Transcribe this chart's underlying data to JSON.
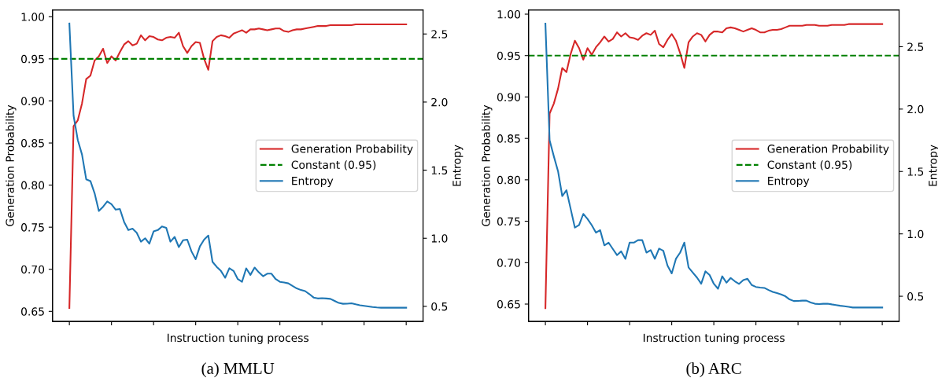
{
  "chart_data": [
    {
      "type": "line",
      "title": "(a) MMLU",
      "xlabel": "Instruction tuning process",
      "ylabel": "Generation Probability",
      "y2label": "Entropy",
      "categories": [
        null,
        null,
        null,
        null,
        null,
        null,
        null,
        null,
        null,
        null,
        null,
        null,
        null,
        null,
        null,
        null,
        null,
        null,
        null,
        null,
        null,
        null,
        null,
        null,
        null,
        null,
        null,
        null,
        null,
        null,
        null,
        null,
        null,
        null,
        null,
        null,
        null,
        null,
        null,
        null,
        null,
        null,
        null,
        null,
        null,
        null,
        null,
        null,
        null,
        null,
        null,
        null,
        null,
        null,
        null,
        null,
        null,
        null,
        null,
        null,
        null,
        null,
        null,
        null,
        null,
        null,
        null,
        null,
        null,
        null,
        null,
        null,
        null,
        null,
        null,
        null,
        null,
        null,
        null,
        null,
        null
      ],
      "ylim": [
        0.638,
        1.008
      ],
      "yticks": [
        {
          "value": 0.65,
          "label": "0.65"
        },
        {
          "value": 0.7,
          "label": "0.70"
        },
        {
          "value": 0.75,
          "label": "0.75"
        },
        {
          "value": 0.8,
          "label": "0.80"
        },
        {
          "value": 0.85,
          "label": "0.85"
        },
        {
          "value": 0.9,
          "label": "0.90"
        },
        {
          "value": 0.95,
          "label": "0.95"
        },
        {
          "value": 1.0,
          "label": "1.00"
        }
      ],
      "y2lim": [
        0.389,
        2.676
      ],
      "y2ticks": [
        {
          "value": 0.5,
          "label": "0.5"
        },
        {
          "value": 1.0,
          "label": "1.0"
        },
        {
          "value": 1.5,
          "label": "1.5"
        },
        {
          "value": 2.0,
          "label": "2.0"
        },
        {
          "value": 2.5,
          "label": "2.5"
        }
      ],
      "legend": "right",
      "grid": false,
      "ref_lines": [
        {
          "axis": "y",
          "value": 0.95,
          "label": "Constant (0.95)",
          "color": "#008000",
          "line_style": "dashed"
        }
      ],
      "series": [
        {
          "name": "Generation Probability",
          "color": "#d62728",
          "values": [
            0.654,
            0.87,
            0.877,
            0.897,
            0.926,
            0.93,
            0.948,
            0.953,
            0.962,
            0.945,
            0.953,
            0.948,
            0.958,
            0.967,
            0.971,
            0.966,
            0.968,
            0.978,
            0.972,
            0.977,
            0.976,
            0.973,
            0.972,
            0.975,
            0.976,
            0.975,
            0.981,
            0.965,
            0.957,
            0.965,
            0.97,
            0.969,
            0.95,
            0.937,
            0.971,
            0.976,
            0.978,
            0.977,
            0.975,
            0.98,
            0.982,
            0.984,
            0.981,
            0.985,
            0.985,
            0.986,
            0.985,
            0.984,
            0.985,
            0.986,
            0.986,
            0.983,
            0.982,
            0.984,
            0.985,
            0.985,
            0.986,
            0.987,
            0.988,
            0.989,
            0.989,
            0.989,
            0.99,
            0.99,
            0.99,
            0.99,
            0.99,
            0.99,
            0.991,
            0.991,
            0.991,
            0.991,
            0.991,
            0.991,
            0.991,
            0.991,
            0.991,
            0.991,
            0.991,
            0.991,
            0.991
          ]
        },
        {
          "name": "Entropy",
          "color": "#1f77b4",
          "axis": "y2",
          "values": [
            2.577,
            1.9,
            1.721,
            1.615,
            1.433,
            1.42,
            1.33,
            1.2,
            1.231,
            1.27,
            1.25,
            1.21,
            1.215,
            1.12,
            1.06,
            1.07,
            1.04,
            0.975,
            1.0,
            0.96,
            1.05,
            1.06,
            1.087,
            1.077,
            0.975,
            1.01,
            0.935,
            0.985,
            0.99,
            0.904,
            0.846,
            0.94,
            0.99,
            1.02,
            0.827,
            0.79,
            0.76,
            0.71,
            0.78,
            0.76,
            0.7,
            0.68,
            0.779,
            0.731,
            0.785,
            0.75,
            0.721,
            0.74,
            0.74,
            0.7,
            0.68,
            0.675,
            0.669,
            0.65,
            0.632,
            0.62,
            0.612,
            0.59,
            0.565,
            0.558,
            0.56,
            0.558,
            0.555,
            0.54,
            0.525,
            0.519,
            0.52,
            0.523,
            0.515,
            0.508,
            0.504,
            0.5,
            0.495,
            0.492,
            0.49,
            0.49,
            0.49,
            0.49,
            0.49,
            0.49,
            0.49
          ]
        }
      ]
    },
    {
      "type": "line",
      "title": "(b) ARC",
      "xlabel": "Instruction tuning process",
      "ylabel": "Generation Probability",
      "y2label": "Entropy",
      "categories": [
        null,
        null,
        null,
        null,
        null,
        null,
        null,
        null,
        null,
        null,
        null,
        null,
        null,
        null,
        null,
        null,
        null,
        null,
        null,
        null,
        null,
        null,
        null,
        null,
        null,
        null,
        null,
        null,
        null,
        null,
        null,
        null,
        null,
        null,
        null,
        null,
        null,
        null,
        null,
        null,
        null,
        null,
        null,
        null,
        null,
        null,
        null,
        null,
        null,
        null,
        null,
        null,
        null,
        null,
        null,
        null,
        null,
        null,
        null,
        null,
        null,
        null,
        null,
        null,
        null,
        null,
        null,
        null,
        null,
        null,
        null,
        null,
        null,
        null,
        null,
        null,
        null,
        null,
        null,
        null,
        null
      ],
      "ylim": [
        0.629,
        1.005
      ],
      "yticks": [
        {
          "value": 0.65,
          "label": "0.65"
        },
        {
          "value": 0.7,
          "label": "0.70"
        },
        {
          "value": 0.75,
          "label": "0.75"
        },
        {
          "value": 0.8,
          "label": "0.80"
        },
        {
          "value": 0.85,
          "label": "0.85"
        },
        {
          "value": 0.9,
          "label": "0.90"
        },
        {
          "value": 0.95,
          "label": "0.95"
        },
        {
          "value": 1.0,
          "label": "1.00"
        }
      ],
      "y2lim": [
        0.298,
        2.794
      ],
      "y2ticks": [
        {
          "value": 0.5,
          "label": "0.5"
        },
        {
          "value": 1.0,
          "label": "1.0"
        },
        {
          "value": 1.5,
          "label": "1.5"
        },
        {
          "value": 2.0,
          "label": "2.0"
        },
        {
          "value": 2.5,
          "label": "2.5"
        }
      ],
      "legend": "right",
      "grid": false,
      "ref_lines": [
        {
          "axis": "y",
          "value": 0.95,
          "label": "Constant (0.95)",
          "color": "#008000",
          "line_style": "dashed"
        }
      ],
      "series": [
        {
          "name": "Generation Probability",
          "color": "#d62728",
          "values": [
            0.645,
            0.88,
            0.892,
            0.91,
            0.935,
            0.93,
            0.952,
            0.968,
            0.959,
            0.945,
            0.959,
            0.951,
            0.96,
            0.966,
            0.973,
            0.967,
            0.97,
            0.978,
            0.973,
            0.977,
            0.972,
            0.971,
            0.969,
            0.974,
            0.977,
            0.975,
            0.98,
            0.964,
            0.96,
            0.969,
            0.976,
            0.968,
            0.953,
            0.935,
            0.966,
            0.973,
            0.977,
            0.975,
            0.967,
            0.975,
            0.979,
            0.979,
            0.978,
            0.983,
            0.984,
            0.983,
            0.981,
            0.979,
            0.981,
            0.983,
            0.981,
            0.978,
            0.978,
            0.98,
            0.981,
            0.981,
            0.982,
            0.984,
            0.986,
            0.986,
            0.986,
            0.986,
            0.987,
            0.987,
            0.987,
            0.986,
            0.986,
            0.986,
            0.987,
            0.987,
            0.987,
            0.987,
            0.988,
            0.988,
            0.988,
            0.988,
            0.988,
            0.988,
            0.988,
            0.988,
            0.988
          ]
        },
        {
          "name": "Entropy",
          "color": "#1f77b4",
          "axis": "y2",
          "values": [
            2.685,
            1.75,
            1.622,
            1.502,
            1.303,
            1.35,
            1.2,
            1.05,
            1.071,
            1.16,
            1.12,
            1.07,
            1.01,
            1.03,
            0.908,
            0.93,
            0.88,
            0.83,
            0.86,
            0.8,
            0.93,
            0.93,
            0.95,
            0.95,
            0.85,
            0.87,
            0.8,
            0.882,
            0.865,
            0.746,
            0.683,
            0.8,
            0.85,
            0.93,
            0.731,
            0.69,
            0.65,
            0.6,
            0.7,
            0.67,
            0.6,
            0.56,
            0.66,
            0.609,
            0.647,
            0.62,
            0.599,
            0.63,
            0.64,
            0.59,
            0.575,
            0.57,
            0.567,
            0.55,
            0.535,
            0.525,
            0.515,
            0.5,
            0.475,
            0.462,
            0.463,
            0.465,
            0.465,
            0.45,
            0.44,
            0.437,
            0.44,
            0.441,
            0.435,
            0.43,
            0.424,
            0.42,
            0.415,
            0.41,
            0.41,
            0.41,
            0.41,
            0.41,
            0.41,
            0.41,
            0.41
          ]
        }
      ]
    }
  ]
}
